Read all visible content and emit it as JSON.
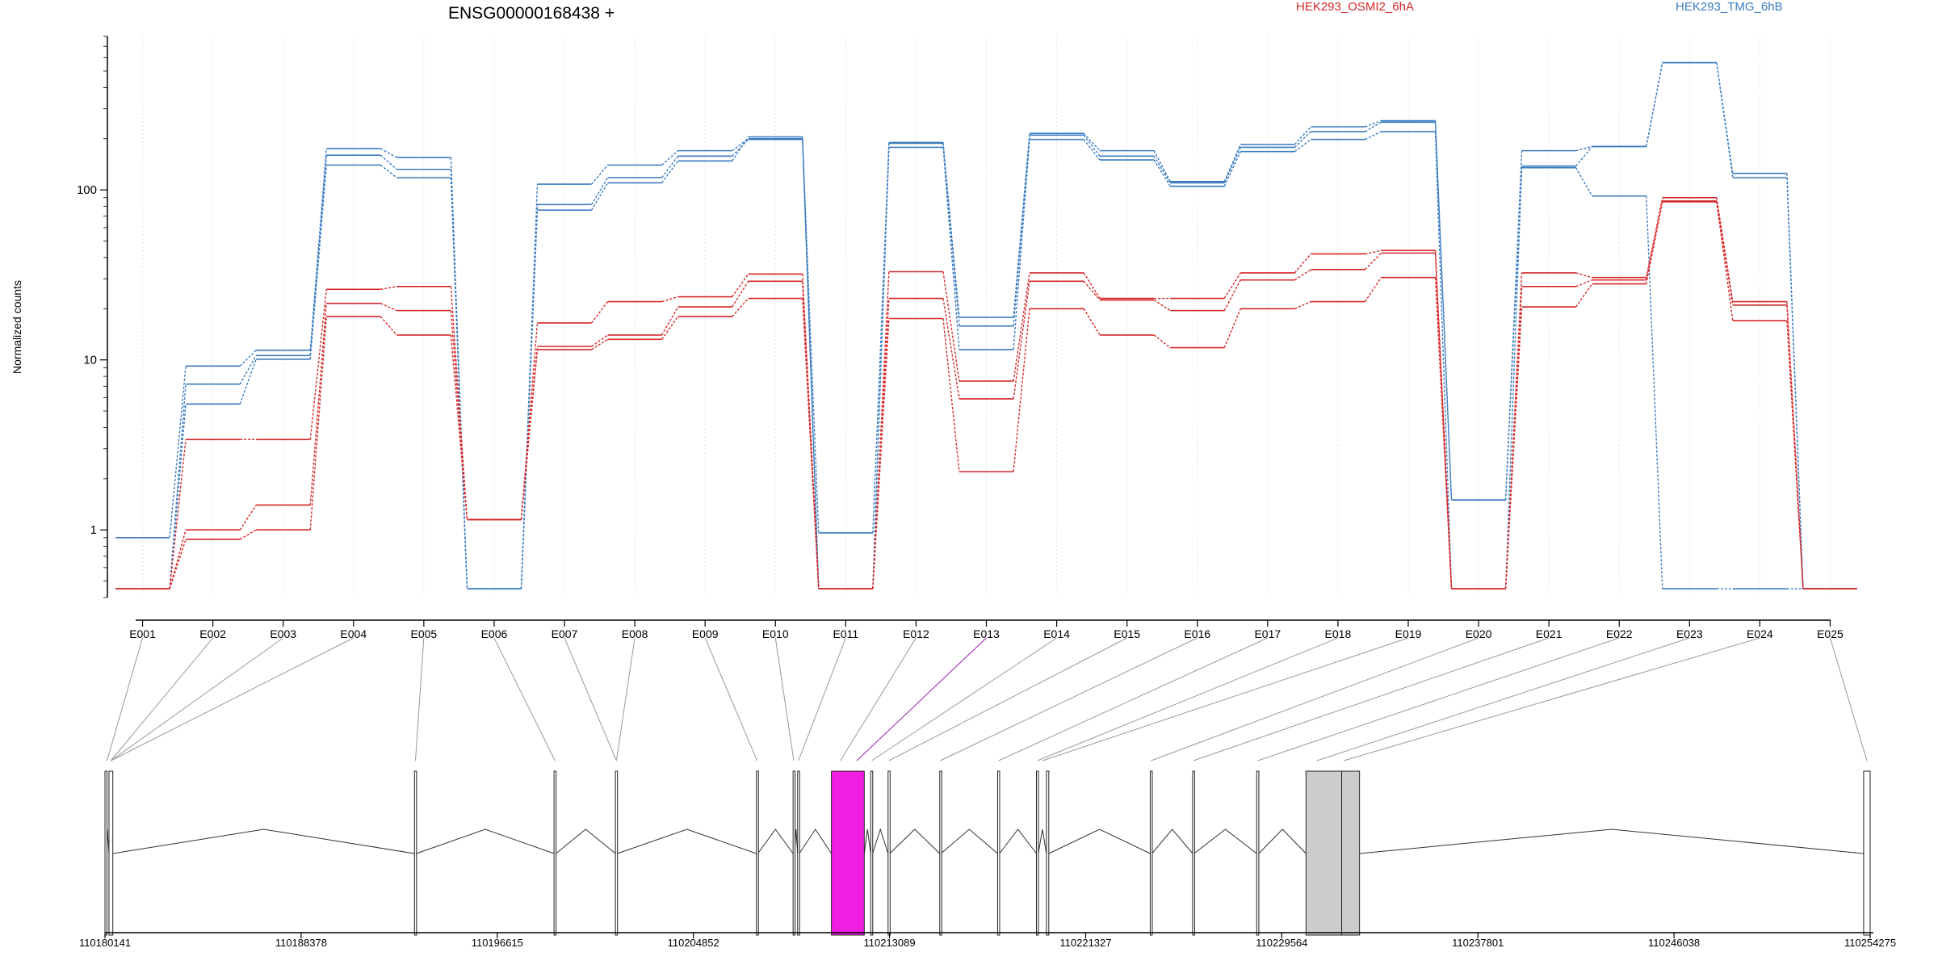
{
  "chart_data": {
    "type": "line",
    "title": "ENSG00000168438 +",
    "ylabel": "Normalized counts",
    "yscale": "log",
    "ylim": [
      0.4,
      800
    ],
    "yticks": [
      {
        "value": 1,
        "label": "1"
      },
      {
        "value": 10,
        "label": "10"
      },
      {
        "value": 100,
        "label": "100"
      }
    ],
    "grid": "vertical dotted",
    "legend_position": "top",
    "floor_value": 0.45,
    "categories": [
      "E001",
      "E002",
      "E003",
      "E004",
      "E005",
      "E006",
      "E007",
      "E008",
      "E009",
      "E010",
      "E011",
      "E012",
      "E013",
      "E014",
      "E015",
      "E016",
      "E017",
      "E018",
      "E019",
      "E020",
      "E021",
      "E022",
      "E023",
      "E024",
      "E025"
    ],
    "conditions": [
      {
        "name": "HEK293_OSMI2_6hA",
        "color": "#d62728"
      },
      {
        "name": "HEK293_TMG_6hB",
        "color": "#3a7bbf"
      }
    ],
    "series": [
      {
        "condition": 1,
        "values": [
          0.9,
          9.2,
          11.4,
          175,
          155,
          0.45,
          108,
          140,
          170,
          200,
          0.96,
          188,
          17.8,
          215,
          170,
          112,
          185,
          235,
          255,
          1.5,
          170,
          180,
          560,
          125,
          0.45
        ]
      },
      {
        "condition": 1,
        "values": [
          0.45,
          7.2,
          10.6,
          160,
          132,
          0.45,
          82,
          118,
          158,
          198,
          0.45,
          190,
          15.8,
          210,
          158,
          110,
          178,
          220,
          250,
          1.5,
          138,
          180,
          560,
          118,
          0.45
        ]
      },
      {
        "condition": 1,
        "values": [
          0.45,
          5.5,
          10.1,
          140,
          118,
          0.45,
          76,
          110,
          148,
          205,
          0.45,
          178,
          11.5,
          198,
          150,
          105,
          168,
          198,
          220,
          0.45,
          135,
          92,
          0.45,
          0.45,
          0.45
        ]
      },
      {
        "condition": 0,
        "values": [
          0.45,
          3.4,
          3.4,
          26,
          27,
          1.15,
          16.5,
          22,
          23.5,
          32,
          0.45,
          33,
          7.5,
          32.5,
          23,
          23,
          32.5,
          42,
          44,
          0.45,
          32.5,
          30.5,
          90,
          22,
          0.45
        ]
      },
      {
        "condition": 0,
        "values": [
          0.45,
          1.0,
          1.4,
          21.5,
          19.5,
          1.15,
          12,
          14,
          20.5,
          29,
          0.45,
          23,
          5.9,
          29,
          22.5,
          19.5,
          29.5,
          34,
          42.5,
          0.45,
          27,
          29.5,
          86,
          21,
          0.45
        ]
      },
      {
        "condition": 0,
        "values": [
          0.45,
          0.88,
          1.0,
          18,
          14,
          1.15,
          11.5,
          13.2,
          18,
          23,
          0.45,
          17.5,
          2.2,
          20,
          14,
          11.8,
          20,
          22,
          30.5,
          0.45,
          20.5,
          28,
          85,
          17,
          0.45
        ]
      }
    ],
    "transcript": {
      "coord_ticks": [
        "110180141",
        "110188378",
        "110196615",
        "110204852",
        "110213089",
        "110221327",
        "110229564",
        "110237801",
        "110246038",
        "110254275"
      ],
      "coord_range": [
        110180141,
        110254275
      ],
      "exon_spans": [
        [
          110180141,
          110180170
        ],
        [
          110180310,
          110180470
        ],
        [
          110193140,
          110193220
        ],
        [
          110199000,
          110199080
        ],
        [
          110201580,
          110201660
        ],
        [
          110207500,
          110207560
        ],
        [
          110209040,
          110209100
        ],
        [
          110209230,
          110209300
        ],
        [
          110210650,
          110212030
        ],
        [
          110212300,
          110212380
        ],
        [
          110213030,
          110213100
        ],
        [
          110215200,
          110215250
        ],
        [
          110217630,
          110217710
        ],
        [
          110219260,
          110219340
        ],
        [
          110219680,
          110219780
        ],
        [
          110224040,
          110224110
        ],
        [
          110225820,
          110225880
        ],
        [
          110228510,
          110228600
        ],
        [
          110230580,
          110232080
        ],
        [
          110232080,
          110232830
        ],
        [
          110254000,
          110254275
        ]
      ],
      "highlighted_exon": "E013",
      "highlight_color": "#f01de2",
      "shaded_color": "#cccccc",
      "exon_anchor_bins": [
        [
          110180141,
          110180310
        ],
        [
          110180310,
          110180470
        ],
        [
          110180310,
          110180470
        ],
        [
          110180310,
          110180470
        ],
        [
          110193140,
          110193220
        ],
        [
          110199000,
          110199080
        ],
        [
          110201580,
          110201660
        ],
        [
          110201580,
          110201660
        ],
        [
          110207500,
          110207560
        ],
        [
          110209040,
          110209100
        ],
        [
          110209230,
          110209300
        ],
        [
          110210650,
          110211400
        ],
        [
          110211400,
          110212030
        ],
        [
          110212300,
          110212380
        ],
        [
          110213030,
          110213100
        ],
        [
          110215200,
          110215250
        ],
        [
          110217630,
          110217710
        ],
        [
          110219260,
          110219340
        ],
        [
          110219260,
          110219780
        ],
        [
          110224040,
          110224110
        ],
        [
          110225820,
          110225880
        ],
        [
          110228510,
          110228600
        ],
        [
          110230580,
          110231500
        ],
        [
          110231500,
          110232830
        ],
        [
          110254000,
          110254275
        ]
      ]
    }
  }
}
